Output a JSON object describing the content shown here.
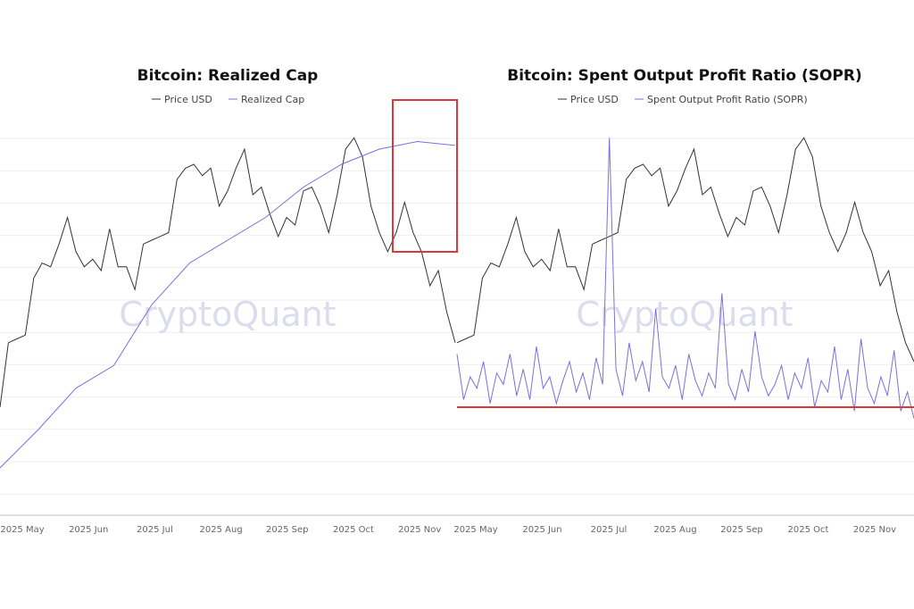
{
  "chart_data": [
    {
      "type": "line",
      "title": "Bitcoin: Realized Cap",
      "legend": [
        "Price USD",
        "Realized Cap"
      ],
      "legend_placement": "top-center",
      "watermark": "CryptoQuant",
      "x_ticks": [
        "2025 May",
        "2025 Jun",
        "2025 Jul",
        "2025 Aug",
        "2025 Sep",
        "2025 Oct",
        "2025 Nov"
      ],
      "y_axis": "hidden (relative index 0-100)",
      "grid": true,
      "series": [
        {
          "name": "Price USD",
          "color": "#333333",
          "values": [
            28,
            45,
            46,
            47,
            62,
            66,
            65,
            71,
            78,
            69,
            65,
            67,
            64,
            75,
            65,
            65,
            59,
            71,
            72,
            73,
            74,
            88,
            91,
            92,
            89,
            91,
            81,
            85,
            91,
            96,
            84,
            86,
            79,
            73,
            78,
            76,
            85,
            86,
            81,
            74,
            84,
            96,
            99,
            94,
            81,
            74,
            69,
            74,
            82,
            74,
            69,
            60,
            64,
            53,
            45
          ]
        },
        {
          "name": "Realized Cap",
          "color": "#7b6fe0",
          "values": [
            12,
            22,
            33,
            39,
            55,
            66,
            72,
            78,
            86,
            92,
            96,
            98,
            97
          ]
        }
      ],
      "annotation": {
        "type": "rectangle",
        "color": "#d63a3a",
        "note": "highlight of price drop after October peak"
      }
    },
    {
      "type": "line",
      "title": "Bitcoin: Spent Output Profit Ratio (SOPR)",
      "legend": [
        "Price USD",
        "Spent Output Profit Ratio (SOPR)"
      ],
      "legend_placement": "top-center",
      "watermark": "CryptoQuant",
      "x_ticks": [
        "2025 May",
        "2025 Jun",
        "2025 Jul",
        "2025 Aug",
        "2025 Sep",
        "2025 Oct",
        "2025 Nov"
      ],
      "y_axis": "hidden (relative index 0-100)",
      "grid": true,
      "series": [
        {
          "name": "Price USD",
          "color": "#333333",
          "values": [
            45,
            46,
            47,
            62,
            66,
            65,
            71,
            78,
            69,
            65,
            67,
            64,
            75,
            65,
            65,
            59,
            71,
            72,
            73,
            74,
            88,
            91,
            92,
            89,
            91,
            81,
            85,
            91,
            96,
            84,
            86,
            79,
            73,
            78,
            76,
            85,
            86,
            81,
            74,
            84,
            96,
            99,
            94,
            81,
            74,
            69,
            74,
            82,
            74,
            69,
            60,
            64,
            53,
            45,
            40
          ]
        },
        {
          "name": "Spent Output Profit Ratio (SOPR)",
          "color": "#7b6fe0",
          "values": [
            42,
            30,
            36,
            33,
            40,
            29,
            37,
            34,
            42,
            31,
            38,
            30,
            44,
            33,
            36,
            29,
            35,
            40,
            32,
            37,
            30,
            41,
            34,
            99,
            38,
            31,
            45,
            35,
            40,
            32,
            54,
            36,
            33,
            39,
            30,
            42,
            35,
            31,
            37,
            33,
            58,
            34,
            30,
            38,
            32,
            48,
            36,
            31,
            34,
            39,
            30,
            37,
            33,
            41,
            28,
            35,
            32,
            44,
            30,
            38,
            27,
            46,
            33,
            29,
            36,
            31,
            43,
            27,
            32,
            25
          ]
        },
        {
          "name": "Support level",
          "color": "#d63a3a",
          "values": [
            28
          ]
        }
      ]
    }
  ]
}
